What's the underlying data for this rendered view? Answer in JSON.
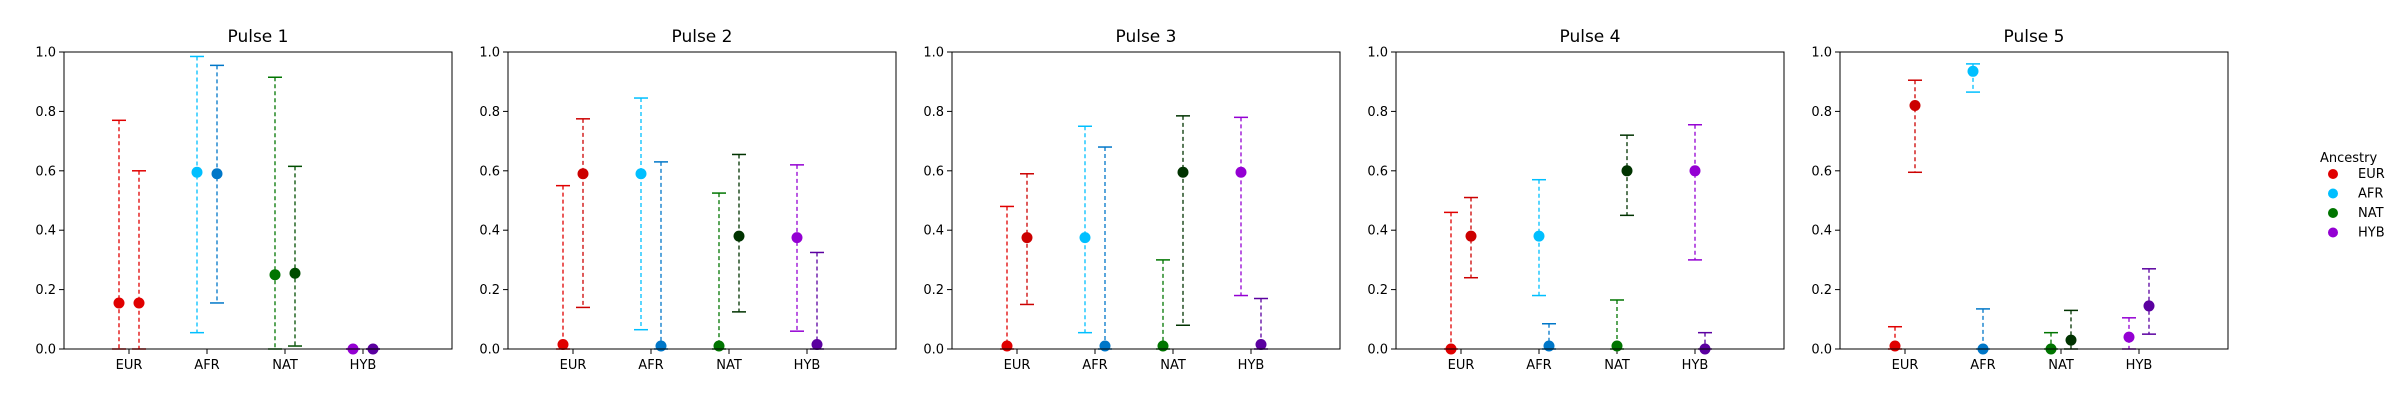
{
  "legend": {
    "title": "Ancestry",
    "items": [
      {
        "label": "EUR",
        "color": "#e00000"
      },
      {
        "label": "AFR",
        "color": "#00bfff"
      },
      {
        "label": "NAT",
        "color": "#007500"
      },
      {
        "label": "HYB",
        "color": "#9400d3"
      }
    ]
  },
  "chart_data": [
    {
      "type": "errorbar",
      "title": "Pulse 1",
      "categories": [
        "EUR",
        "AFR",
        "NAT",
        "HYB"
      ],
      "ylim": [
        0,
        1
      ],
      "yticks": [
        "0.0",
        "0.2",
        "0.4",
        "0.6",
        "0.8",
        "1.0"
      ],
      "points": [
        {
          "cat": "EUR",
          "offset": -1,
          "estimate": 0.155,
          "lower": 0.0,
          "upper": 0.77,
          "color": "#e00000"
        },
        {
          "cat": "EUR",
          "offset": 1,
          "estimate": 0.155,
          "lower": 0.0,
          "upper": 0.6,
          "color": "#e00000"
        },
        {
          "cat": "AFR",
          "offset": -1,
          "estimate": 0.595,
          "lower": 0.055,
          "upper": 0.985,
          "color": "#00bfff"
        },
        {
          "cat": "AFR",
          "offset": 1,
          "estimate": 0.59,
          "lower": 0.155,
          "upper": 0.955,
          "color": "#0077c8"
        },
        {
          "cat": "NAT",
          "offset": -1,
          "estimate": 0.25,
          "lower": 0.0,
          "upper": 0.915,
          "color": "#007500"
        },
        {
          "cat": "NAT",
          "offset": 1,
          "estimate": 0.255,
          "lower": 0.01,
          "upper": 0.615,
          "color": "#004d00"
        },
        {
          "cat": "HYB",
          "offset": -1,
          "estimate": 0.0,
          "lower": 0.0,
          "upper": 0.0,
          "color": "#9400d3"
        },
        {
          "cat": "HYB",
          "offset": 1,
          "estimate": 0.0,
          "lower": 0.0,
          "upper": 0.0,
          "color": "#5b00a0"
        }
      ]
    },
    {
      "type": "errorbar",
      "title": "Pulse 2",
      "categories": [
        "EUR",
        "AFR",
        "NAT",
        "HYB"
      ],
      "ylim": [
        0,
        1
      ],
      "yticks": [
        "0.0",
        "0.2",
        "0.4",
        "0.6",
        "0.8",
        "1.0"
      ],
      "points": [
        {
          "cat": "EUR",
          "offset": -1,
          "estimate": 0.015,
          "lower": 0.0,
          "upper": 0.55,
          "color": "#e00000"
        },
        {
          "cat": "EUR",
          "offset": 1,
          "estimate": 0.59,
          "lower": 0.14,
          "upper": 0.775,
          "color": "#cc0000"
        },
        {
          "cat": "AFR",
          "offset": -1,
          "estimate": 0.59,
          "lower": 0.065,
          "upper": 0.845,
          "color": "#00bfff"
        },
        {
          "cat": "AFR",
          "offset": 1,
          "estimate": 0.01,
          "lower": 0.0,
          "upper": 0.63,
          "color": "#0077c8"
        },
        {
          "cat": "NAT",
          "offset": -1,
          "estimate": 0.01,
          "lower": 0.0,
          "upper": 0.525,
          "color": "#007500"
        },
        {
          "cat": "NAT",
          "offset": 1,
          "estimate": 0.38,
          "lower": 0.125,
          "upper": 0.655,
          "color": "#003300"
        },
        {
          "cat": "HYB",
          "offset": -1,
          "estimate": 0.375,
          "lower": 0.06,
          "upper": 0.62,
          "color": "#9400d3"
        },
        {
          "cat": "HYB",
          "offset": 1,
          "estimate": 0.015,
          "lower": 0.0,
          "upper": 0.325,
          "color": "#5b00a0"
        }
      ]
    },
    {
      "type": "errorbar",
      "title": "Pulse 3",
      "categories": [
        "EUR",
        "AFR",
        "NAT",
        "HYB"
      ],
      "ylim": [
        0,
        1
      ],
      "yticks": [
        "0.0",
        "0.2",
        "0.4",
        "0.6",
        "0.8",
        "1.0"
      ],
      "points": [
        {
          "cat": "EUR",
          "offset": -1,
          "estimate": 0.01,
          "lower": 0.0,
          "upper": 0.48,
          "color": "#e00000"
        },
        {
          "cat": "EUR",
          "offset": 1,
          "estimate": 0.375,
          "lower": 0.15,
          "upper": 0.59,
          "color": "#cc0000"
        },
        {
          "cat": "AFR",
          "offset": -1,
          "estimate": 0.375,
          "lower": 0.055,
          "upper": 0.75,
          "color": "#00bfff"
        },
        {
          "cat": "AFR",
          "offset": 1,
          "estimate": 0.01,
          "lower": 0.0,
          "upper": 0.68,
          "color": "#0077c8"
        },
        {
          "cat": "NAT",
          "offset": -1,
          "estimate": 0.01,
          "lower": 0.0,
          "upper": 0.3,
          "color": "#007500"
        },
        {
          "cat": "NAT",
          "offset": 1,
          "estimate": 0.595,
          "lower": 0.08,
          "upper": 0.785,
          "color": "#003300"
        },
        {
          "cat": "HYB",
          "offset": -1,
          "estimate": 0.595,
          "lower": 0.18,
          "upper": 0.78,
          "color": "#9400d3"
        },
        {
          "cat": "HYB",
          "offset": 1,
          "estimate": 0.015,
          "lower": 0.0,
          "upper": 0.17,
          "color": "#5b00a0"
        }
      ]
    },
    {
      "type": "errorbar",
      "title": "Pulse 4",
      "categories": [
        "EUR",
        "AFR",
        "NAT",
        "HYB"
      ],
      "ylim": [
        0,
        1
      ],
      "yticks": [
        "0.0",
        "0.2",
        "0.4",
        "0.6",
        "0.8",
        "1.0"
      ],
      "points": [
        {
          "cat": "EUR",
          "offset": -1,
          "estimate": 0.0,
          "lower": 0.0,
          "upper": 0.46,
          "color": "#e00000"
        },
        {
          "cat": "EUR",
          "offset": 1,
          "estimate": 0.38,
          "lower": 0.24,
          "upper": 0.51,
          "color": "#cc0000"
        },
        {
          "cat": "AFR",
          "offset": 0,
          "estimate": 0.38,
          "lower": 0.18,
          "upper": 0.57,
          "color": "#00bfff"
        },
        {
          "cat": "AFR",
          "offset": 1,
          "estimate": 0.01,
          "lower": 0.0,
          "upper": 0.085,
          "color": "#0077c8"
        },
        {
          "cat": "NAT",
          "offset": 0,
          "estimate": 0.01,
          "lower": 0.0,
          "upper": 0.165,
          "color": "#007500"
        },
        {
          "cat": "NAT",
          "offset": 1,
          "estimate": 0.6,
          "lower": 0.45,
          "upper": 0.72,
          "color": "#003300"
        },
        {
          "cat": "HYB",
          "offset": 0,
          "estimate": 0.6,
          "lower": 0.3,
          "upper": 0.755,
          "color": "#9400d3"
        },
        {
          "cat": "HYB",
          "offset": 1,
          "estimate": 0.0,
          "lower": 0.0,
          "upper": 0.055,
          "color": "#5b00a0"
        }
      ]
    },
    {
      "type": "errorbar",
      "title": "Pulse 5",
      "categories": [
        "EUR",
        "AFR",
        "NAT",
        "HYB"
      ],
      "ylim": [
        0,
        1
      ],
      "yticks": [
        "0.0",
        "0.2",
        "0.4",
        "0.6",
        "0.8",
        "1.0"
      ],
      "points": [
        {
          "cat": "EUR",
          "offset": -1,
          "estimate": 0.01,
          "lower": 0.0,
          "upper": 0.075,
          "color": "#e00000"
        },
        {
          "cat": "EUR",
          "offset": 1,
          "estimate": 0.82,
          "lower": 0.595,
          "upper": 0.905,
          "color": "#cc0000"
        },
        {
          "cat": "AFR",
          "offset": -1,
          "estimate": 0.935,
          "lower": 0.865,
          "upper": 0.96,
          "color": "#00bfff"
        },
        {
          "cat": "AFR",
          "offset": 0,
          "estimate": 0.0,
          "lower": 0.0,
          "upper": 0.135,
          "color": "#0077c8"
        },
        {
          "cat": "NAT",
          "offset": -1,
          "estimate": 0.0,
          "lower": 0.0,
          "upper": 0.055,
          "color": "#007500"
        },
        {
          "cat": "NAT",
          "offset": 1,
          "estimate": 0.03,
          "lower": 0.0,
          "upper": 0.13,
          "color": "#003300"
        },
        {
          "cat": "HYB",
          "offset": -1,
          "estimate": 0.04,
          "lower": 0.0,
          "upper": 0.105,
          "color": "#9400d3"
        },
        {
          "cat": "HYB",
          "offset": 1,
          "estimate": 0.145,
          "lower": 0.05,
          "upper": 0.27,
          "color": "#5b00a0"
        }
      ]
    }
  ]
}
